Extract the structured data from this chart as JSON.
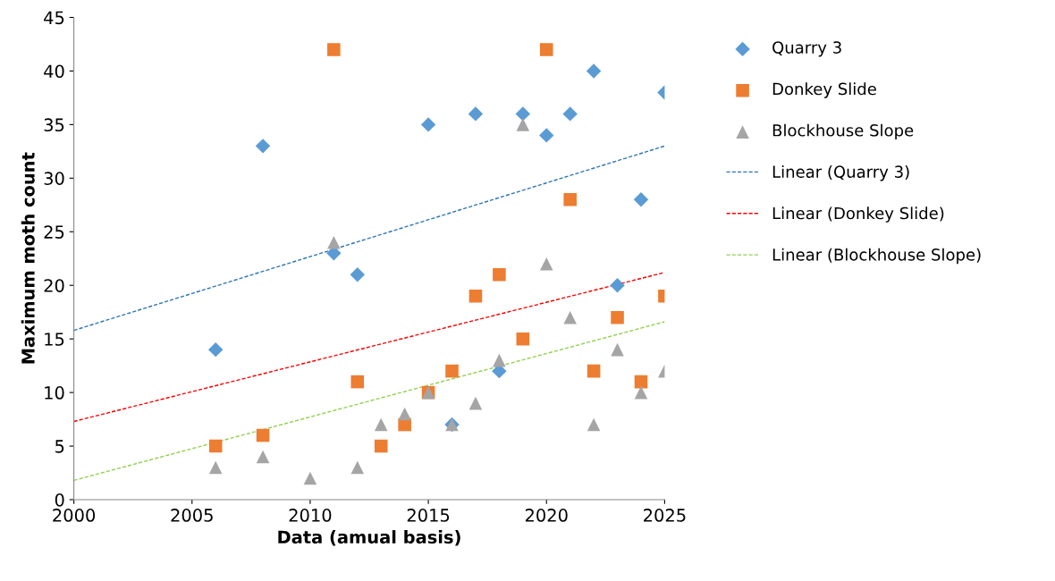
{
  "chart_data": {
    "type": "scatter",
    "xlabel": "Data (amual basis)",
    "ylabel": "Maximum moth count",
    "xlim": [
      2000,
      2025
    ],
    "xticks": [
      2000,
      2005,
      2010,
      2015,
      2020,
      2025
    ],
    "ylim": [
      0,
      45
    ],
    "yticks": [
      0,
      5,
      10,
      15,
      20,
      25,
      30,
      35,
      40,
      45
    ],
    "grid": false,
    "legend": "right",
    "series": [
      {
        "name": "Quarry 3",
        "color": "#5b9bd5",
        "marker": "diamond",
        "x": [
          2006,
          2008,
          2011,
          2012,
          2015,
          2016,
          2017,
          2018,
          2019,
          2020,
          2021,
          2022,
          2023,
          2024,
          2025
        ],
        "values": [
          14,
          33,
          23,
          21,
          35,
          7,
          36,
          12,
          36,
          34,
          36,
          40,
          20,
          28,
          38
        ]
      },
      {
        "name": "Donkey Slide",
        "color": "#ed7d31",
        "marker": "square",
        "x": [
          2006,
          2008,
          2011,
          2012,
          2013,
          2014,
          2015,
          2016,
          2017,
          2018,
          2019,
          2020,
          2021,
          2022,
          2023,
          2024,
          2025
        ],
        "values": [
          5,
          6,
          42,
          11,
          5,
          7,
          10,
          12,
          19,
          21,
          15,
          42,
          28,
          12,
          17,
          11,
          19
        ]
      },
      {
        "name": "Blockhouse Slope",
        "color": "#a5a5a5",
        "marker": "triangle",
        "x": [
          2006,
          2008,
          2010,
          2011,
          2012,
          2013,
          2014,
          2015,
          2016,
          2017,
          2018,
          2019,
          2020,
          2021,
          2022,
          2023,
          2024,
          2025
        ],
        "values": [
          3,
          4,
          2,
          24,
          3,
          7,
          8,
          10,
          7,
          9,
          13,
          35,
          22,
          17,
          7,
          14,
          10,
          12
        ]
      },
      {
        "name": "Linear (Quarry 3)",
        "type": "line",
        "color": "#2e75b6",
        "line_style": "dashed",
        "x": [
          2000,
          2025
        ],
        "values": [
          15.8,
          33
        ]
      },
      {
        "name": "Linear (Donkey Slide)",
        "type": "line",
        "color": "#ff0000",
        "line_style": "dashed",
        "x": [
          2000,
          2025
        ],
        "values": [
          7.3,
          21.2
        ]
      },
      {
        "name": "Linear (Blockhouse Slope)",
        "type": "line",
        "color": "#92d050",
        "line_style": "dashed",
        "x": [
          2000,
          2025
        ],
        "values": [
          1.8,
          16.6
        ]
      }
    ]
  }
}
